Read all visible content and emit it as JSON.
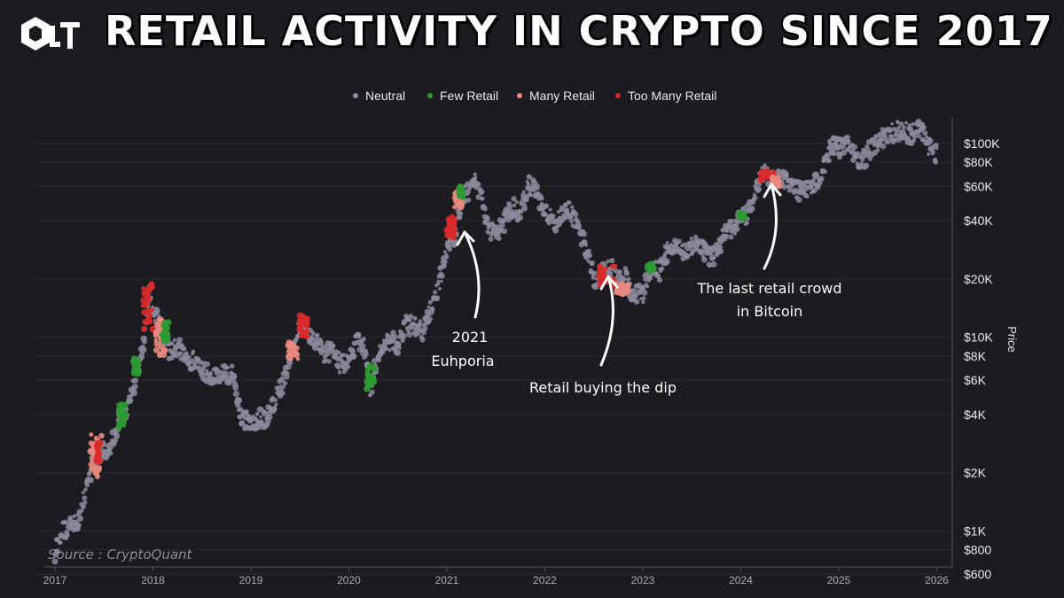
{
  "header": {
    "title": "RETAIL ACTIVITY IN CRYPTO SINCE 2017",
    "logo_icon": "cryptoquant-logo-icon"
  },
  "source_label": "Source : CryptoQuant",
  "colors": {
    "background": "#1c1b20",
    "neutral": "#8c8a9c",
    "few_retail": "#2e9a34",
    "many_retail": "#e98a7e",
    "too_many_retail": "#d92a2a",
    "grid": "#2b2a30"
  },
  "chart_data": {
    "type": "scatter",
    "title": "RETAIL ACTIVITY IN CRYPTO SINCE 2017",
    "legend": {
      "placement": "top-center",
      "entries": [
        "Neutral",
        "Few Retail",
        "Many Retail",
        "Too Many Retail"
      ]
    },
    "y_axis": {
      "label": "Price",
      "scale": "log",
      "position": "right",
      "range": [
        600,
        140000
      ],
      "ticks": [
        600,
        800,
        1000,
        2000,
        4000,
        6000,
        8000,
        10000,
        20000,
        40000,
        60000,
        80000,
        100000
      ],
      "tick_labels": [
        "$600",
        "$800",
        "$1K",
        "$2K",
        "$4K",
        "$6K",
        "$8K",
        "$10K",
        "$20K",
        "$40K",
        "$60K",
        "$80K",
        "$100K"
      ]
    },
    "x_axis": {
      "range": [
        2017.0,
        2026.05
      ],
      "ticks": [
        2017,
        2018,
        2019,
        2020,
        2021,
        2022,
        2023,
        2024,
        2025,
        2026
      ],
      "tick_labels": [
        "2017",
        "2018",
        "2019",
        "2020",
        "2021",
        "2022",
        "2023",
        "2024",
        "2025",
        "2026"
      ]
    },
    "grid": true,
    "price_path": [
      [
        2017.0,
        780
      ],
      [
        2017.08,
        1000
      ],
      [
        2017.17,
        1080
      ],
      [
        2017.25,
        1150
      ],
      [
        2017.33,
        1800
      ],
      [
        2017.42,
        2500
      ],
      [
        2017.5,
        2600
      ],
      [
        2017.58,
        2800
      ],
      [
        2017.67,
        4000
      ],
      [
        2017.75,
        4300
      ],
      [
        2017.83,
        6300
      ],
      [
        2017.92,
        10000
      ],
      [
        2017.96,
        18000
      ],
      [
        2018.0,
        14000
      ],
      [
        2018.08,
        11000
      ],
      [
        2018.17,
        8500
      ],
      [
        2018.25,
        9000
      ],
      [
        2018.33,
        8000
      ],
      [
        2018.42,
        7500
      ],
      [
        2018.5,
        6800
      ],
      [
        2018.58,
        6500
      ],
      [
        2018.67,
        6500
      ],
      [
        2018.75,
        6500
      ],
      [
        2018.83,
        6300
      ],
      [
        2018.88,
        4200
      ],
      [
        2018.92,
        3800
      ],
      [
        2019.0,
        3700
      ],
      [
        2019.08,
        3800
      ],
      [
        2019.17,
        3900
      ],
      [
        2019.25,
        4800
      ],
      [
        2019.33,
        5800
      ],
      [
        2019.42,
        8500
      ],
      [
        2019.5,
        11500
      ],
      [
        2019.58,
        10500
      ],
      [
        2019.67,
        9600
      ],
      [
        2019.75,
        8300
      ],
      [
        2019.83,
        8500
      ],
      [
        2019.92,
        7200
      ],
      [
        2020.0,
        7400
      ],
      [
        2020.08,
        9800
      ],
      [
        2020.17,
        8700
      ],
      [
        2020.22,
        5000
      ],
      [
        2020.25,
        6600
      ],
      [
        2020.33,
        8800
      ],
      [
        2020.42,
        9600
      ],
      [
        2020.5,
        9200
      ],
      [
        2020.58,
        11500
      ],
      [
        2020.67,
        11600
      ],
      [
        2020.75,
        10600
      ],
      [
        2020.83,
        13500
      ],
      [
        2020.92,
        19000
      ],
      [
        2021.0,
        29000
      ],
      [
        2021.08,
        34000
      ],
      [
        2021.17,
        55000
      ],
      [
        2021.25,
        58000
      ],
      [
        2021.29,
        63000
      ],
      [
        2021.33,
        56000
      ],
      [
        2021.42,
        37000
      ],
      [
        2021.5,
        34000
      ],
      [
        2021.58,
        39000
      ],
      [
        2021.67,
        47000
      ],
      [
        2021.75,
        43000
      ],
      [
        2021.83,
        61000
      ],
      [
        2021.9,
        57000
      ],
      [
        2022.0,
        47000
      ],
      [
        2022.08,
        38000
      ],
      [
        2022.17,
        43000
      ],
      [
        2022.25,
        45000
      ],
      [
        2022.33,
        38000
      ],
      [
        2022.42,
        29000
      ],
      [
        2022.5,
        20000
      ],
      [
        2022.58,
        21000
      ],
      [
        2022.67,
        23000
      ],
      [
        2022.75,
        19500
      ],
      [
        2022.83,
        20500
      ],
      [
        2022.88,
        16500
      ],
      [
        2022.92,
        17000
      ],
      [
        2023.0,
        16600
      ],
      [
        2023.08,
        23000
      ],
      [
        2023.17,
        22000
      ],
      [
        2023.25,
        28000
      ],
      [
        2023.33,
        29000
      ],
      [
        2023.42,
        27000
      ],
      [
        2023.5,
        30000
      ],
      [
        2023.58,
        29500
      ],
      [
        2023.67,
        26000
      ],
      [
        2023.75,
        27000
      ],
      [
        2023.83,
        34000
      ],
      [
        2023.92,
        37000
      ],
      [
        2024.0,
        42500
      ],
      [
        2024.08,
        43000
      ],
      [
        2024.17,
        61000
      ],
      [
        2024.21,
        71000
      ],
      [
        2024.25,
        69000
      ],
      [
        2024.33,
        63000
      ],
      [
        2024.42,
        68000
      ],
      [
        2024.5,
        62000
      ],
      [
        2024.58,
        57000
      ],
      [
        2024.67,
        59000
      ],
      [
        2024.75,
        63000
      ],
      [
        2024.83,
        70000
      ],
      [
        2024.92,
        96000
      ],
      [
        2025.0,
        94000
      ],
      [
        2025.08,
        102000
      ],
      [
        2025.17,
        84000
      ],
      [
        2025.25,
        82000
      ],
      [
        2025.33,
        94000
      ],
      [
        2025.42,
        106000
      ],
      [
        2025.5,
        108000
      ],
      [
        2025.58,
        118000
      ],
      [
        2025.67,
        115000
      ],
      [
        2025.75,
        112000
      ],
      [
        2025.83,
        121000
      ],
      [
        2025.88,
        110000
      ],
      [
        2025.92,
        95000
      ],
      [
        2026.0,
        88000
      ]
    ],
    "retail_clusters": [
      {
        "category": "Many Retail",
        "x": [
          2017.36,
          2017.48
        ],
        "y": [
          1900,
          3200
        ]
      },
      {
        "category": "Too Many Retail",
        "x": [
          2017.42,
          2017.46
        ],
        "y": [
          2200,
          2900
        ]
      },
      {
        "category": "Few Retail",
        "x": [
          2017.64,
          2017.72
        ],
        "y": [
          3400,
          4600
        ]
      },
      {
        "category": "Few Retail",
        "x": [
          2017.8,
          2017.86
        ],
        "y": [
          6500,
          7800
        ]
      },
      {
        "category": "Too Many Retail",
        "x": [
          2017.9,
          2018.0
        ],
        "y": [
          11000,
          19000
        ]
      },
      {
        "category": "Many Retail",
        "x": [
          2018.02,
          2018.12
        ],
        "y": [
          8000,
          12500
        ]
      },
      {
        "category": "Few Retail",
        "x": [
          2018.1,
          2018.16
        ],
        "y": [
          9500,
          12000
        ]
      },
      {
        "category": "Many Retail",
        "x": [
          2019.38,
          2019.48
        ],
        "y": [
          7600,
          9400
        ]
      },
      {
        "category": "Too Many Retail",
        "x": [
          2019.48,
          2019.58
        ],
        "y": [
          10000,
          13000
        ]
      },
      {
        "category": "Few Retail",
        "x": [
          2020.18,
          2020.26
        ],
        "y": [
          5400,
          7200
        ]
      },
      {
        "category": "Too Many Retail",
        "x": [
          2021.0,
          2021.08
        ],
        "y": [
          32000,
          42000
        ]
      },
      {
        "category": "Many Retail",
        "x": [
          2021.08,
          2021.16
        ],
        "y": [
          47000,
          57000
        ]
      },
      {
        "category": "Few Retail",
        "x": [
          2021.12,
          2021.16
        ],
        "y": [
          53000,
          60000
        ]
      },
      {
        "category": "Too Many Retail",
        "x": [
          2022.55,
          2022.72
        ],
        "y": [
          18500,
          23500
        ]
      },
      {
        "category": "Many Retail",
        "x": [
          2022.72,
          2022.86
        ],
        "y": [
          16500,
          19000
        ]
      },
      {
        "category": "Few Retail",
        "x": [
          2023.04,
          2023.12
        ],
        "y": [
          21500,
          24000
        ]
      },
      {
        "category": "Few Retail",
        "x": [
          2023.98,
          2024.04
        ],
        "y": [
          41000,
          44000
        ]
      },
      {
        "category": "Too Many Retail",
        "x": [
          2024.2,
          2024.34
        ],
        "y": [
          64000,
          73000
        ]
      },
      {
        "category": "Many Retail",
        "x": [
          2024.32,
          2024.4
        ],
        "y": [
          60000,
          67000
        ]
      }
    ],
    "annotations": [
      {
        "lines": [
          "2021",
          "Euhporia"
        ],
        "x": 2021.0,
        "y": 9000,
        "arrow_to": [
          2021.14,
          35000
        ]
      },
      {
        "lines": [
          "Retail buying the dip"
        ],
        "x": 2022.25,
        "y": 4600,
        "arrow_to": [
          2022.6,
          19000
        ]
      },
      {
        "lines": [
          "The last retail crowd",
          "in Bitcoin"
        ],
        "x": 2024.35,
        "y": 17000,
        "arrow_to": [
          2024.28,
          59000
        ]
      }
    ]
  }
}
